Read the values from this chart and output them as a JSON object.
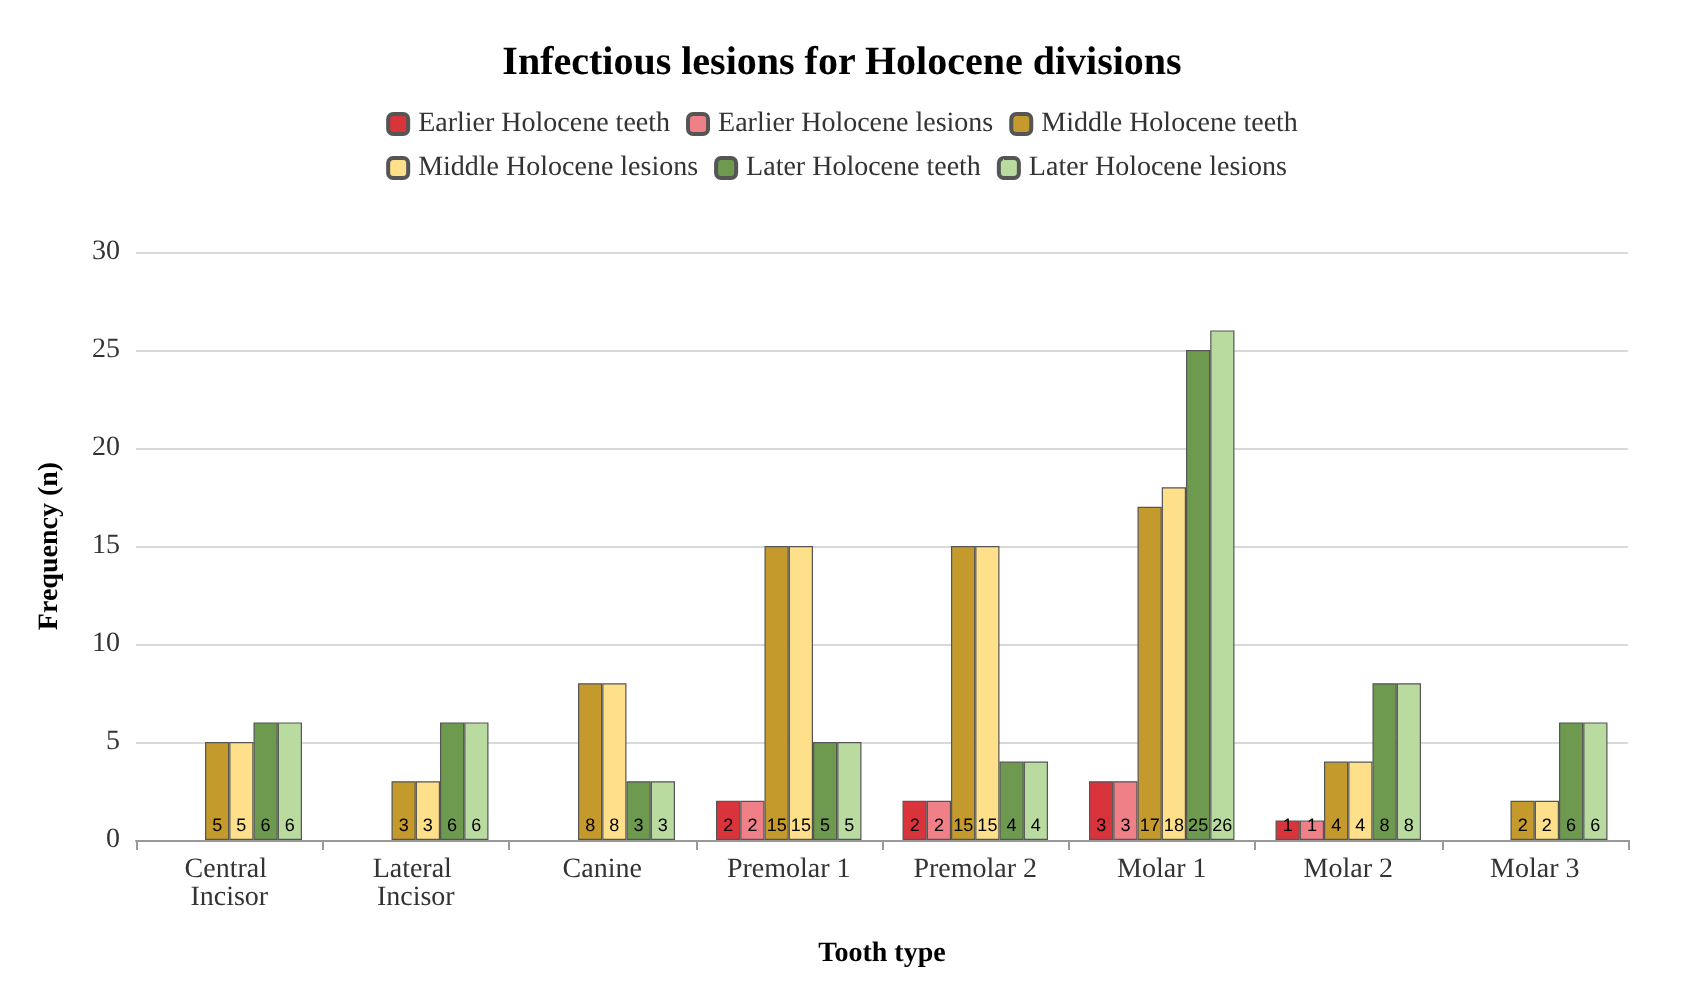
{
  "chart_data": {
    "type": "bar",
    "title": "Infectious lesions for Holocene divisions",
    "xlabel": "Tooth type",
    "ylabel": "Frequency (n)",
    "categories": [
      "Central Incisor",
      "Lateral Incisor",
      "Canine",
      "Premolar 1",
      "Premolar 2",
      "Molar 1",
      "Molar 2",
      "Molar 3"
    ],
    "series": [
      {
        "name": "Earlier Holocene teeth",
        "color": "#d9333b",
        "values": [
          null,
          null,
          null,
          2,
          2,
          3,
          1,
          null
        ]
      },
      {
        "name": "Earlier Holocene lesions",
        "color": "#f08088",
        "values": [
          null,
          null,
          null,
          2,
          2,
          3,
          1,
          null
        ]
      },
      {
        "name": "Middle Holocene teeth",
        "color": "#c49a2c",
        "values": [
          5,
          3,
          8,
          15,
          15,
          17,
          4,
          2
        ]
      },
      {
        "name": "Middle Holocene lesions",
        "color": "#ffe08a",
        "values": [
          5,
          3,
          8,
          15,
          15,
          18,
          4,
          2
        ]
      },
      {
        "name": "Later Holocene teeth",
        "color": "#6e9a50",
        "values": [
          6,
          6,
          3,
          5,
          4,
          25,
          8,
          6
        ]
      },
      {
        "name": "Later Holocene lesions",
        "color": "#b9dba0",
        "values": [
          6,
          6,
          3,
          5,
          4,
          26,
          8,
          6
        ]
      }
    ],
    "ylim": [
      0,
      30
    ],
    "yticks": [
      0,
      5,
      10,
      15,
      20,
      25,
      30
    ],
    "grid": "y",
    "legend": "top",
    "data_labels": true
  }
}
